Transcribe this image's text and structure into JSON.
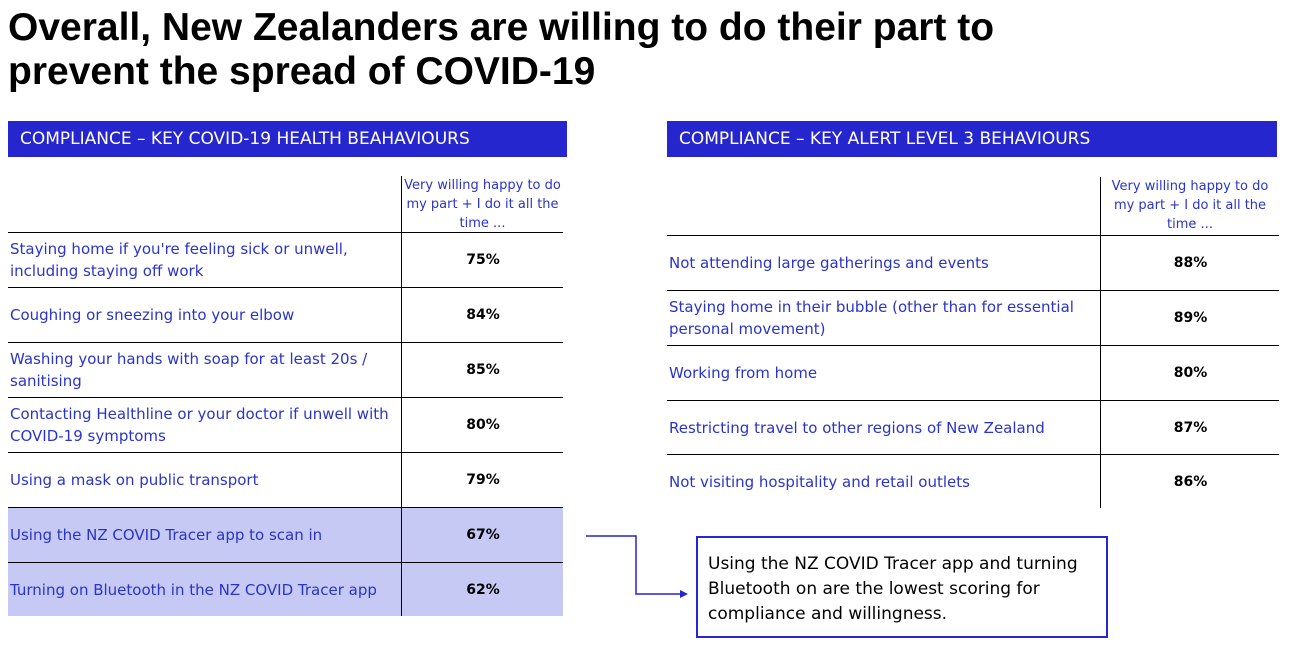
{
  "title": {
    "line1": "Overall, New Zealanders are willing to do their part to",
    "line2": "prevent the spread of COVID-19"
  },
  "left_table": {
    "header": "COMPLIANCE – KEY COVID-19 HEALTH BEAHAVIOURS",
    "column_header": "Very willing happy to do my part + I do it all the time ...",
    "rows": [
      {
        "label": "Staying home if you're feeling sick or unwell, including staying off work",
        "value": "75%",
        "highlight": false
      },
      {
        "label": "Coughing or sneezing into your elbow",
        "value": "84%",
        "highlight": false
      },
      {
        "label": "Washing your hands with soap for at least 20s / sanitising",
        "value": "85%",
        "highlight": false
      },
      {
        "label": "Contacting Healthline or your doctor if unwell with COVID-19 symptoms",
        "value": "80%",
        "highlight": false
      },
      {
        "label": "Using a mask on public transport",
        "value": "79%",
        "highlight": false
      },
      {
        "label": "Using the NZ COVID Tracer app to scan in",
        "value": "67%",
        "highlight": true
      },
      {
        "label": "Turning on Bluetooth in the NZ COVID Tracer app",
        "value": "62%",
        "highlight": true
      }
    ]
  },
  "right_table": {
    "header": "COMPLIANCE – KEY ALERT LEVEL 3 BEHAVIOURS",
    "column_header": "Very willing happy to do my part + I do it all the time ...",
    "rows": [
      {
        "label": "Not attending large gatherings and events",
        "value": "88%"
      },
      {
        "label": "Staying home in their bubble (other than for essential personal movement)",
        "value": "89%"
      },
      {
        "label": "Working from home",
        "value": "80%"
      },
      {
        "label": "Restricting travel to other regions of New Zealand",
        "value": "87%"
      },
      {
        "label": "Not visiting hospitality and retail outlets",
        "value": "86%"
      }
    ]
  },
  "callout": {
    "text": "Using the NZ COVID Tracer app and turning Bluetooth on are the lowest scoring for compliance and willingness."
  },
  "colors": {
    "header_bg": "#2626cf",
    "label_text": "#2b34c8",
    "highlight_row": "#c5c9f4"
  }
}
